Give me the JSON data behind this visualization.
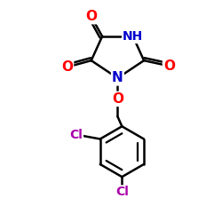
{
  "bg_color": "#ffffff",
  "atom_colors": {
    "O": "#ff0000",
    "N": "#0000cc",
    "Cl": "#aa00aa",
    "C": "#000000",
    "H": "#000000"
  },
  "bond_color": "#000000",
  "bond_width": 1.8,
  "figsize": [
    2.5,
    2.5
  ],
  "dpi": 100
}
